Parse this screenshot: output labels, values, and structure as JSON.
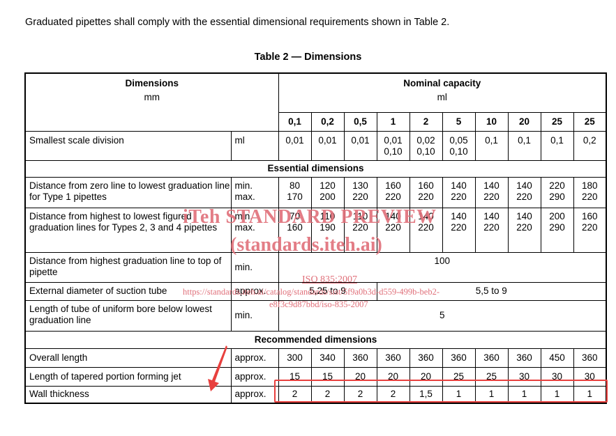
{
  "intro": "Graduated pipettes shall comply with the essential dimensional requirements shown in Table 2.",
  "caption": "Table 2 — Dimensions",
  "header": {
    "dimensions": "Dimensions",
    "dimensions_unit": "mm",
    "nominal": "Nominal capacity",
    "nominal_unit": "ml",
    "capacities": [
      "0,1",
      "0,2",
      "0,5",
      "1",
      "2",
      "5",
      "10",
      "20",
      "25",
      "25"
    ]
  },
  "rows": {
    "smallest": {
      "label": "Smallest scale division",
      "unit": "ml",
      "values": [
        [
          "0,01"
        ],
        [
          "0,01"
        ],
        [
          "0,01"
        ],
        [
          "0,01",
          "0,10"
        ],
        [
          "0,02",
          "0,10"
        ],
        [
          "0,05",
          "0,10"
        ],
        [
          "0,1"
        ],
        [
          "0,1"
        ],
        [
          "0,1"
        ],
        [
          "0,2"
        ]
      ]
    },
    "essential_heading": "Essential dimensions",
    "zero_line": {
      "label": "Distance from zero line to lowest graduation line for Type 1 pipettes",
      "unit_min": "min.",
      "unit_max": "max.",
      "values": [
        [
          "80",
          "170"
        ],
        [
          "120",
          "200"
        ],
        [
          "130",
          "220"
        ],
        [
          "160",
          "220"
        ],
        [
          "160",
          "220"
        ],
        [
          "140",
          "220"
        ],
        [
          "140",
          "220"
        ],
        [
          "140",
          "220"
        ],
        [
          "220",
          "290"
        ],
        [
          "180",
          "220"
        ]
      ]
    },
    "figured": {
      "label": "Distance from highest to lowest figured graduation lines for Types 2, 3 and 4 pipettes",
      "unit_min": "min.",
      "unit_max": "max.",
      "values": [
        [
          "70",
          "160"
        ],
        [
          "110",
          "190"
        ],
        [
          "110",
          "220"
        ],
        [
          "140",
          "220"
        ],
        [
          "140",
          "220"
        ],
        [
          "140",
          "220"
        ],
        [
          "140",
          "220"
        ],
        [
          "140",
          "220"
        ],
        [
          "200",
          "290"
        ],
        [
          "160",
          "220"
        ]
      ]
    },
    "top": {
      "label": "Distance from highest graduation line to top of pipette",
      "unit": "min.",
      "value": "100"
    },
    "suction": {
      "label": "External diameter of suction tube",
      "unit": "approx.",
      "value_a": "5,25 to 9",
      "value_b": "5,5 to 9"
    },
    "bore": {
      "label": "Length of tube of uniform bore below lowest graduation line",
      "unit": "min.",
      "value": "5"
    },
    "recommended_heading": "Recommended dimensions",
    "overall": {
      "label": "Overall length",
      "unit": "approx.",
      "values": [
        "300",
        "340",
        "360",
        "360",
        "360",
        "360",
        "360",
        "360",
        "450",
        "360"
      ]
    },
    "tapered": {
      "label": "Length of tapered portion forming jet",
      "unit": "approx.",
      "values": [
        "15",
        "15",
        "20",
        "20",
        "20",
        "25",
        "25",
        "30",
        "30",
        "30"
      ]
    },
    "wall": {
      "label": "Wall thickness",
      "unit": "approx.",
      "values": [
        "2",
        "2",
        "2",
        "2",
        "1,5",
        "1",
        "1",
        "1",
        "1",
        "1"
      ]
    }
  },
  "watermark": {
    "line1": "iTeh STANDARD PREVIEW",
    "line2": "(standards.iteh.ai)",
    "line3": "ISO 835:2007",
    "line4": "https://standards.iteh.ai/catalog/standards/sist/5f9a0b3d-d559-499b-beb2-",
    "line5": "e8f3c9d87bbd/iso-835-2007"
  },
  "colors": {
    "watermark": "#e0707a",
    "highlight": "#e8403e"
  }
}
